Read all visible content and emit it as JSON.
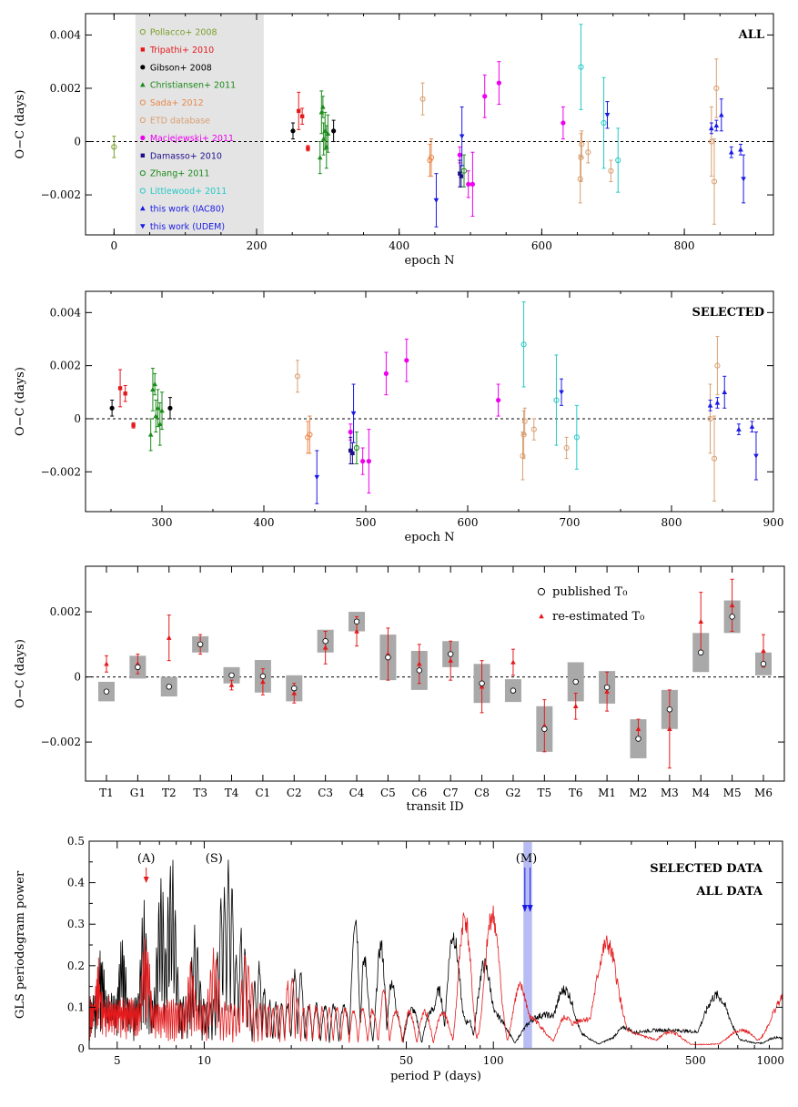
{
  "chart_data": [
    {
      "type": "scatter",
      "xlabel": "epoch N",
      "ylabel": "O−C (days)",
      "corner_label": "ALL",
      "xlim": [
        -40,
        925
      ],
      "ylim": [
        -0.0035,
        0.0048
      ],
      "x_ticks": [
        0,
        200,
        400,
        600,
        800
      ],
      "y_ticks": [
        -0.002,
        0,
        0.002,
        0.004
      ],
      "y_tick_labels": [
        "−0.002",
        "0",
        "0.002",
        "0.004"
      ],
      "reference_line": 0,
      "shaded_x_range": [
        30,
        210
      ],
      "legend_position": "top-left (inside shaded band)",
      "series": [
        {
          "name": "Pollacco+ 2008",
          "color": "#7aa02b",
          "marker": "open-circle",
          "points": [
            [
              0,
              -0.0002,
              0.0004
            ]
          ]
        },
        {
          "name": "Tripathi+ 2010",
          "color": "#e41a1c",
          "marker": "square",
          "points": [
            [
              259,
              0.00115,
              0.0007
            ],
            [
              264,
              0.00095,
              0.0003
            ],
            [
              272,
              -0.00025,
              0.0001
            ]
          ]
        },
        {
          "name": "Gibson+ 2008",
          "color": "#000000",
          "marker": "filled-circle",
          "points": [
            [
              251,
              0.0004,
              0.0003
            ],
            [
              308,
              0.0004,
              0.0004
            ]
          ]
        },
        {
          "name": "Christiansen+ 2011",
          "color": "#1a8a1a",
          "marker": "triangle-up",
          "points": [
            [
              289,
              -0.0006,
              0.0006
            ],
            [
              291,
              0.0011,
              0.0008
            ],
            [
              293,
              0.0013,
              0.0004
            ],
            [
              294,
              0.0001,
              0.0006
            ],
            [
              296,
              0.0004,
              0.0007
            ],
            [
              298,
              -0.0002,
              0.0008
            ],
            [
              300,
              0.0003,
              0.0007
            ]
          ]
        },
        {
          "name": "Sada+ 2012",
          "color": "#e8884a",
          "marker": "open-circle",
          "points": [
            [
              443,
              -0.0007,
              0.0006
            ],
            [
              445,
              -0.0006,
              0.0007
            ]
          ]
        },
        {
          "name": "ETD database",
          "color": "#d9a072",
          "marker": "open-circle",
          "points": [
            [
              433,
              0.0016,
              0.0006
            ],
            [
              654,
              -0.0014,
              0.0009
            ],
            [
              655,
              -0.0006,
              0.0009
            ],
            [
              656,
              -0.0001,
              0.0005
            ],
            [
              665,
              -0.0004,
              0.0004
            ],
            [
              697,
              -0.0011,
              0.0004
            ],
            [
              838,
              0.0,
              0.0013
            ],
            [
              842,
              -0.0015,
              0.0016
            ],
            [
              845,
              0.002,
              0.0011
            ]
          ]
        },
        {
          "name": "Maciejewski+ 2011",
          "color": "#ee00ee",
          "marker": "filled-circle",
          "points": [
            [
              485,
              -0.0005,
              0.0003
            ],
            [
              497,
              -0.0016,
              0.0005
            ],
            [
              503,
              -0.0016,
              0.0012
            ],
            [
              520,
              0.0017,
              0.0008
            ],
            [
              540,
              0.0022,
              0.0008
            ],
            [
              630,
              0.0007,
              0.0006
            ]
          ]
        },
        {
          "name": "Damasso+ 2010",
          "color": "#1f0f8a",
          "marker": "square",
          "points": [
            [
              485,
              -0.0012,
              0.0005
            ],
            [
              487,
              -0.0013,
              0.0004
            ]
          ]
        },
        {
          "name": "Zhang+ 2011",
          "color": "#1a8a1a",
          "marker": "open-circle",
          "points": [
            [
              491,
              -0.0011,
              0.0006
            ]
          ]
        },
        {
          "name": "Littlewood+ 2011",
          "color": "#27c8c8",
          "marker": "open-circle",
          "points": [
            [
              655,
              0.0028,
              0.0016
            ],
            [
              687,
              0.0007,
              0.0017
            ],
            [
              707,
              -0.0007,
              0.0012
            ]
          ]
        },
        {
          "name": "this work (IAC80)",
          "color": "#1a1ae6",
          "marker": "triangle-up",
          "points": [
            [
              838,
              0.0005,
              0.0002
            ],
            [
              845,
              0.0006,
              0.0002
            ],
            [
              852,
              0.001,
              0.0006
            ],
            [
              866,
              -0.0004,
              0.0002
            ],
            [
              879,
              -0.0003,
              0.0002
            ]
          ]
        },
        {
          "name": "this work (UDEM)",
          "color": "#1a1ae6",
          "marker": "triangle-down",
          "points": [
            [
              452,
              -0.0022,
              0.001
            ],
            [
              488,
              0.0002,
              0.0011
            ],
            [
              692,
              0.001,
              0.0005
            ],
            [
              883,
              -0.0014,
              0.0009
            ]
          ]
        }
      ]
    },
    {
      "type": "scatter",
      "xlabel": "epoch N",
      "ylabel": "O−C (days)",
      "corner_label": "SELECTED",
      "xlim": [
        225,
        900
      ],
      "ylim": [
        -0.0035,
        0.0048
      ],
      "x_ticks": [
        300,
        400,
        500,
        600,
        700,
        800,
        900
      ],
      "y_ticks": [
        -0.002,
        0,
        0.002,
        0.004
      ],
      "y_tick_labels": [
        "−0.002",
        "0",
        "0.002",
        "0.004"
      ],
      "reference_line": 0
    },
    {
      "type": "scatter",
      "xlabel": "transit ID",
      "ylabel": "O−C (days)",
      "categories": [
        "T1",
        "G1",
        "T2",
        "T3",
        "T4",
        "C1",
        "C2",
        "C3",
        "C4",
        "C5",
        "C6",
        "C7",
        "C8",
        "G2",
        "T5",
        "T6",
        "M1",
        "M2",
        "M3",
        "M4",
        "M5",
        "M6"
      ],
      "ylim": [
        -0.0032,
        0.0034
      ],
      "y_ticks": [
        -0.002,
        0,
        0.002
      ],
      "y_tick_labels": [
        "−0.002",
        "0",
        "0.002"
      ],
      "legend": [
        "published T₀",
        "re-estimated T₀"
      ],
      "legend_position": "top-right",
      "reference_line": 0,
      "series": [
        {
          "name": "published T₀",
          "color": "#ffffff",
          "marker": "open-circle",
          "values": [
            -0.00045,
            0.0003,
            -0.0003,
            0.001,
            5e-05,
            2e-05,
            -0.00035,
            0.0011,
            0.0017,
            0.0006,
            0.0002,
            0.0007,
            -0.0002,
            -0.00042,
            -0.0016,
            -0.00015,
            -0.00032,
            -0.0019,
            -0.001,
            0.00075,
            0.00185,
            0.0004
          ],
          "box_halfwidth": [
            0.0003,
            0.00035,
            0.0003,
            0.00025,
            0.00025,
            0.0005,
            0.0004,
            0.00035,
            0.0003,
            0.0007,
            0.0006,
            0.0004,
            0.0006,
            0.00035,
            0.0007,
            0.0006,
            0.0005,
            0.0006,
            0.0006,
            0.0006,
            0.0005,
            0.00035
          ]
        },
        {
          "name": "re-estimated T₀",
          "color": "#e41a1c",
          "marker": "triangle-up",
          "values": [
            0.0004,
            0.0004,
            0.0012,
            0.001,
            -0.00025,
            -0.00015,
            -0.0005,
            0.0009,
            0.0014,
            0.0007,
            0.0004,
            0.0005,
            -0.0003,
            0.00045,
            -0.0015,
            -0.0009,
            -0.00045,
            -0.0016,
            -0.0016,
            0.0017,
            0.0022,
            0.0008
          ],
          "errors": [
            0.00025,
            0.0003,
            0.0007,
            0.0003,
            0.00015,
            0.0004,
            0.0003,
            0.0005,
            0.00045,
            0.0008,
            0.0006,
            0.0006,
            0.0008,
            0.0004,
            0.0008,
            0.0004,
            0.0006,
            0.0003,
            0.0012,
            0.0009,
            0.0008,
            0.0005
          ]
        }
      ]
    },
    {
      "type": "line",
      "xlabel": "period P (days)",
      "ylabel": "GLS periodogram power",
      "x_scale": "log",
      "xlim": [
        4,
        1000
      ],
      "ylim": [
        0,
        0.5
      ],
      "x_ticks": [
        5,
        10,
        50,
        100,
        500,
        1000
      ],
      "y_ticks": [
        0,
        0.1,
        0.2,
        0.3,
        0.4,
        0.5
      ],
      "y_tick_labels": [
        "0",
        "0.1",
        "0.2",
        "0.3",
        "0.4",
        "0.5"
      ],
      "legend": [
        "SELECTED DATA",
        "ALL DATA"
      ],
      "legend_position": "top-right",
      "annotations": [
        {
          "text": "(A)",
          "x": 6.3,
          "color": "#e41a1c"
        },
        {
          "text": "(S)",
          "x": 11.3,
          "color": "#000000"
        },
        {
          "text": "(M)",
          "x": 130,
          "color": "#1a1ae6"
        }
      ],
      "highlight_band": [
        127,
        136
      ],
      "highlight_color": "#b8bcf4",
      "series": [
        {
          "name": "SELECTED DATA",
          "color": "#000000",
          "peaks": [
            [
              4.4,
              0.27
            ],
            [
              5.2,
              0.3
            ],
            [
              6.2,
              0.37
            ],
            [
              7.1,
              0.44
            ],
            [
              7.7,
              0.48
            ],
            [
              9.3,
              0.31
            ],
            [
              11.6,
              0.44
            ],
            [
              12.2,
              0.5
            ],
            [
              13.5,
              0.31
            ],
            [
              15.5,
              0.22
            ],
            [
              21,
              0.22
            ],
            [
              34,
              0.38
            ],
            [
              42,
              0.31
            ],
            [
              70,
              0.39
            ],
            [
              90,
              0.29
            ],
            [
              180,
              0.2
            ],
            [
              280,
              0.12
            ],
            [
              600,
              0.27
            ],
            [
              900,
              0.11
            ]
          ]
        },
        {
          "name": "ALL DATA",
          "color": "#e41a1c",
          "peaks": [
            [
              4.3,
              0.23
            ],
            [
              6.3,
              0.31
            ],
            [
              9,
              0.22
            ],
            [
              10.8,
              0.27
            ],
            [
              14,
              0.25
            ],
            [
              20,
              0.2
            ],
            [
              42,
              0.15
            ],
            [
              80,
              0.35
            ],
            [
              100,
              0.36
            ],
            [
              120,
              0.2
            ],
            [
              170,
              0.15
            ],
            [
              250,
              0.31
            ],
            [
              420,
              0.19
            ],
            [
              700,
              0.17
            ],
            [
              1000,
              0.22
            ]
          ]
        }
      ]
    }
  ]
}
